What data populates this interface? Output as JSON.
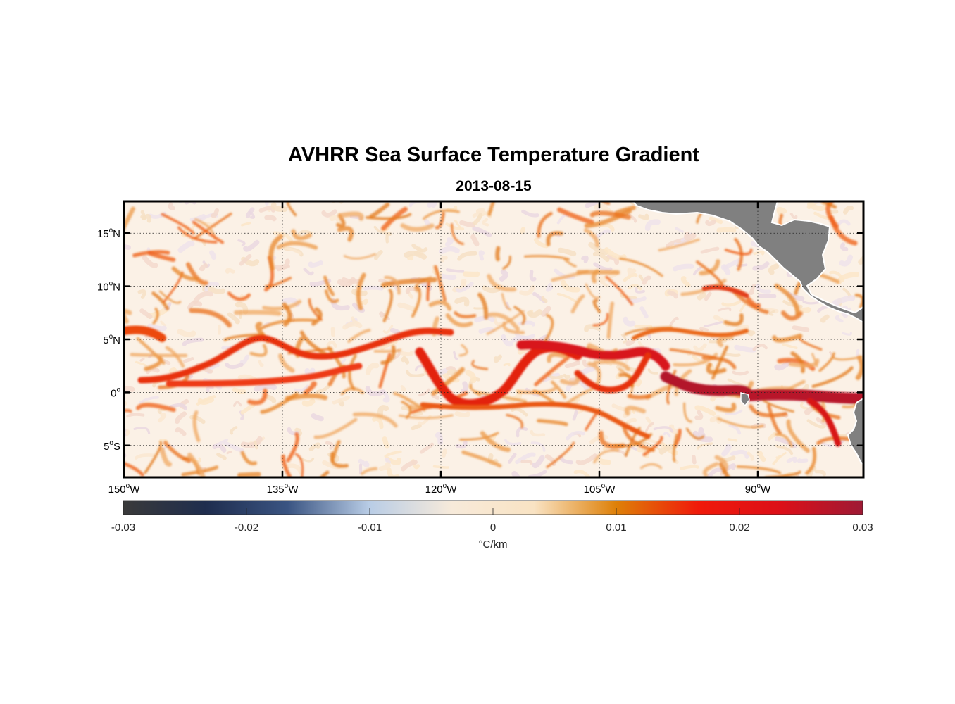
{
  "chart_data": {
    "type": "heatmap",
    "title": "AVHRR Sea Surface Temperature Gradient",
    "subtitle": "2013-08-15",
    "x_ticks": [
      {
        "value": -150,
        "num": "150",
        "deg": "o",
        "dir": "W"
      },
      {
        "value": -135,
        "num": "135",
        "deg": "o",
        "dir": "W"
      },
      {
        "value": -120,
        "num": "120",
        "deg": "o",
        "dir": "W"
      },
      {
        "value": -105,
        "num": "105",
        "deg": "o",
        "dir": "W"
      },
      {
        "value": -90,
        "num": "90",
        "deg": "o",
        "dir": "W"
      }
    ],
    "y_ticks": [
      {
        "value": 15,
        "num": "15",
        "deg": "o",
        "dir": "N"
      },
      {
        "value": 10,
        "num": "10",
        "deg": "o",
        "dir": "N"
      },
      {
        "value": 5,
        "num": "5",
        "deg": "o",
        "dir": "N"
      },
      {
        "value": 0,
        "num": "0",
        "deg": "o",
        "dir": ""
      },
      {
        "value": -5,
        "num": "5",
        "deg": "o",
        "dir": "S"
      }
    ],
    "xlim": [
      -150,
      -80
    ],
    "ylim": [
      -8,
      18
    ],
    "grid": "dotted",
    "colorbar": {
      "label": "°C/km",
      "range": [
        -0.03,
        0.03
      ],
      "ticks": [
        "-0.03",
        "-0.02",
        "-0.01",
        "0",
        "0.01",
        "0.02",
        "0.03"
      ],
      "tick_values": [
        -0.03,
        -0.02,
        -0.01,
        0,
        0.01,
        0.02,
        0.03
      ],
      "colors": [
        "#3a3a3a",
        "#1f2d4e",
        "#3a5482",
        "#b9cde6",
        "#f7eada",
        "#f9e3c3",
        "#de8008",
        "#f01a0a",
        "#dc0f18",
        "#9e1a35"
      ]
    },
    "land_color": "#808080"
  }
}
